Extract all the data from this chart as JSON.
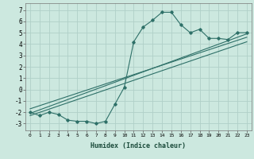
{
  "title": "",
  "xlabel": "Humidex (Indice chaleur)",
  "ylabel": "",
  "xlim": [
    -0.5,
    23.5
  ],
  "ylim": [
    -3.6,
    7.6
  ],
  "xticks": [
    0,
    1,
    2,
    3,
    4,
    5,
    6,
    7,
    8,
    9,
    10,
    11,
    12,
    13,
    14,
    15,
    16,
    17,
    18,
    19,
    20,
    21,
    22,
    23
  ],
  "yticks": [
    -3,
    -2,
    -1,
    0,
    1,
    2,
    3,
    4,
    5,
    6,
    7
  ],
  "bg_color": "#cce8df",
  "grid_color": "#b0d0c8",
  "line_color": "#2e7068",
  "curve_x": [
    0,
    1,
    2,
    3,
    4,
    5,
    6,
    7,
    8,
    9,
    10,
    11,
    12,
    13,
    14,
    15,
    16,
    17,
    18,
    19,
    20,
    21,
    22,
    23
  ],
  "curve_y": [
    -2.0,
    -2.3,
    -2.0,
    -2.2,
    -2.7,
    -2.8,
    -2.8,
    -3.0,
    -2.8,
    -1.3,
    0.2,
    4.2,
    5.5,
    6.1,
    6.8,
    6.8,
    5.7,
    5.0,
    5.3,
    4.5,
    4.5,
    4.4,
    5.0,
    5.0
  ],
  "line1_x": [
    0,
    23
  ],
  "line1_y": [
    -2.1,
    4.9
  ],
  "line2_x": [
    0,
    23
  ],
  "line2_y": [
    -1.7,
    4.6
  ],
  "line3_x": [
    0,
    23
  ],
  "line3_y": [
    -2.3,
    4.2
  ]
}
